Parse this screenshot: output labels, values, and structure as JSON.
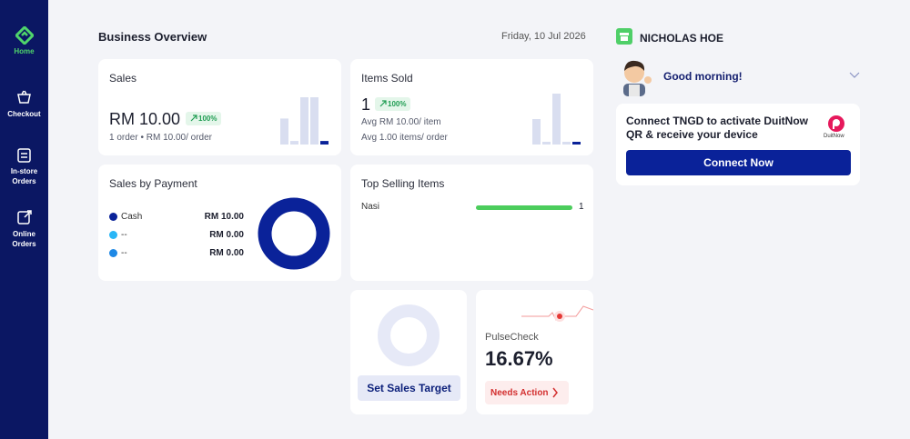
{
  "sidebar": {
    "items": [
      "Home",
      "Checkout",
      "In-store Orders",
      "Online Orders"
    ]
  },
  "header": {
    "title": "Business Overview",
    "date": "Friday, 10 Jul 2026"
  },
  "user": {
    "name": "NICHOLAS HOE",
    "greeting": "Good morning!"
  },
  "promo": {
    "text": "Connect TNGD to activate DuitNow QR & receive your device",
    "logo_label": "DuitNow",
    "button": "Connect Now"
  },
  "sales": {
    "title": "Sales",
    "amount": "RM 10.00",
    "change": "100%",
    "detail": "1 order • RM 10.00/ order",
    "trend": [
      22,
      3,
      40,
      40,
      3
    ]
  },
  "items_sold": {
    "title": "Items Sold",
    "value": "1",
    "change": "100%",
    "avg_price": "Avg RM 10.00/ item",
    "avg_items": "Avg 1.00 items/ order",
    "trend": [
      28,
      3,
      56,
      3,
      3
    ]
  },
  "payment": {
    "title": "Sales by Payment",
    "rows": [
      {
        "name": "Cash",
        "value": 10,
        "value_label": "RM 10.00",
        "color": "#0a2299"
      },
      {
        "name": "--",
        "value": 0,
        "value_label": "RM 0.00",
        "color": "#29b6f6"
      },
      {
        "name": "--",
        "value": 0,
        "value_label": "RM 0.00",
        "color": "#1e88e5"
      }
    ]
  },
  "top_selling": {
    "title": "Top Selling Items",
    "items": [
      {
        "name": "Nasi",
        "value": 1
      }
    ]
  },
  "target": {
    "button": "Set Sales Target"
  },
  "pulse": {
    "label": "PulseCheck",
    "value": "16.67%",
    "action": "Needs Action"
  }
}
